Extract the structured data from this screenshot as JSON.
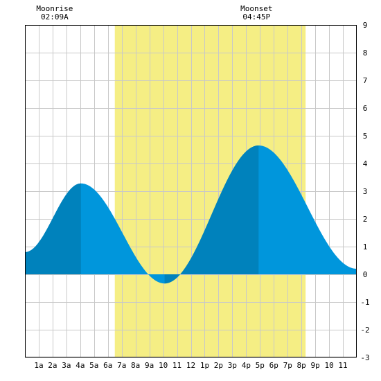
{
  "chart_data": {
    "type": "area",
    "title": "",
    "xlabel": "",
    "ylabel": "",
    "xlim": [
      0,
      24
    ],
    "ylim": [
      -3,
      9
    ],
    "grid": true,
    "x_ticks": [
      {
        "x": 1,
        "label": "1a"
      },
      {
        "x": 2,
        "label": "2a"
      },
      {
        "x": 3,
        "label": "3a"
      },
      {
        "x": 4,
        "label": "4a"
      },
      {
        "x": 5,
        "label": "5a"
      },
      {
        "x": 6,
        "label": "6a"
      },
      {
        "x": 7,
        "label": "7a"
      },
      {
        "x": 8,
        "label": "8a"
      },
      {
        "x": 9,
        "label": "9a"
      },
      {
        "x": 10,
        "label": "10"
      },
      {
        "x": 11,
        "label": "11"
      },
      {
        "x": 12,
        "label": "12"
      },
      {
        "x": 13,
        "label": "1p"
      },
      {
        "x": 14,
        "label": "2p"
      },
      {
        "x": 15,
        "label": "3p"
      },
      {
        "x": 16,
        "label": "4p"
      },
      {
        "x": 17,
        "label": "5p"
      },
      {
        "x": 18,
        "label": "6p"
      },
      {
        "x": 19,
        "label": "7p"
      },
      {
        "x": 20,
        "label": "8p"
      },
      {
        "x": 21,
        "label": "9p"
      },
      {
        "x": 22,
        "label": "10"
      },
      {
        "x": 23,
        "label": "11"
      }
    ],
    "y_ticks": [
      -3,
      -2,
      -1,
      0,
      1,
      2,
      3,
      4,
      5,
      6,
      7,
      8,
      9
    ],
    "daylight": {
      "start": 6.5,
      "end": 20.3
    },
    "moon": {
      "rise": {
        "title": "Moonrise",
        "time": "02:09A",
        "x": 2.15
      },
      "set": {
        "title": "Moonset",
        "time": "04:45P",
        "x": 16.75
      }
    },
    "tide_extremes": [
      {
        "x": 0,
        "y": 0.8
      },
      {
        "x": 4.05,
        "y": 3.28
      },
      {
        "x": 10.1,
        "y": -0.33
      },
      {
        "x": 16.9,
        "y": 4.65
      },
      {
        "x": 24,
        "y": 0.2
      }
    ],
    "dark_spans": [
      [
        0,
        4.05
      ],
      [
        10.1,
        16.9
      ]
    ],
    "colors": {
      "light_water": "#0096DC",
      "dark_water": "#0082BC",
      "daylight": "#F5EE84",
      "grid": "#C8C8C8",
      "axis": "#000000"
    }
  }
}
